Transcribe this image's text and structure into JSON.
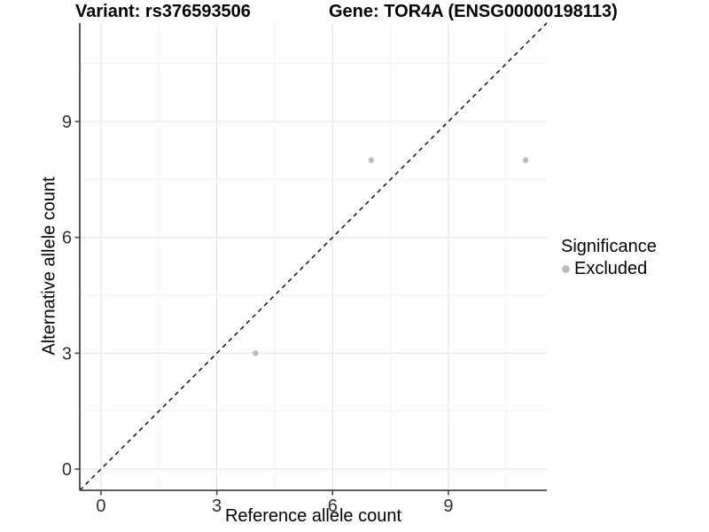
{
  "chart_data": {
    "type": "scatter",
    "title_variant": "Variant: rs376593506",
    "title_gene": "Gene: TOR4A (ENSG00000198113)",
    "xlabel": "Reference allele count",
    "ylabel": "Alternative allele count",
    "xlim": [
      -0.55,
      11.55
    ],
    "ylim": [
      -0.55,
      11.55
    ],
    "xticks": [
      0,
      3,
      6,
      9
    ],
    "yticks": [
      0,
      3,
      6,
      9
    ],
    "minor_ticks_x": [
      1.5,
      4.5,
      7.5,
      10.5
    ],
    "minor_ticks_y": [
      1.5,
      4.5,
      7.5,
      10.5
    ],
    "grid": "major+minor",
    "series": [
      {
        "name": "Excluded",
        "color": "#bcbcbc",
        "marker": "circle",
        "points": [
          [
            4,
            3
          ],
          [
            7,
            8
          ],
          [
            11,
            8
          ]
        ]
      }
    ],
    "reference_line": {
      "equation": "y = x",
      "style": "dashed",
      "color": "#000000"
    },
    "legend": {
      "position": "right",
      "title": "Significance",
      "items": [
        {
          "label": "Excluded",
          "color": "#bcbcbc",
          "marker": "circle"
        }
      ]
    },
    "colors": {
      "background": "#ffffff",
      "grid_major": "#e6e6e6",
      "grid_minor": "#f2f2f2",
      "axis_line": "#464646",
      "tick_label": "#303030",
      "title_text": "#000000"
    }
  }
}
